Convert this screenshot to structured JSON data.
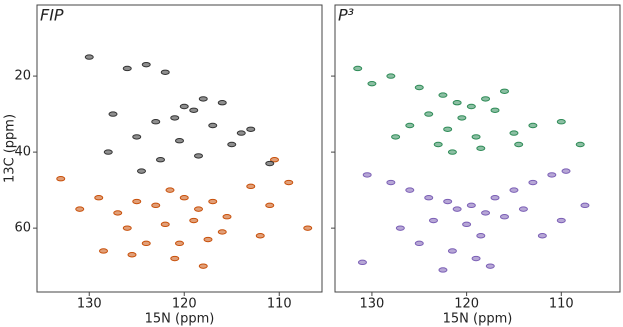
{
  "chart_data": [
    {
      "type": "scatter",
      "title": "FIP",
      "xlabel": "15N (ppm)",
      "ylabel": "13C (ppm)",
      "xlim": [
        135.5,
        105.5
      ],
      "ylim": [
        1.3,
        76.8
      ],
      "xticks": [
        130,
        120,
        110
      ],
      "yticks": [
        20,
        40,
        60
      ],
      "ytick_labels": true,
      "series": [
        {
          "color": "#c8500a",
          "x": [
            131,
            129,
            127,
            125,
            123,
            121.5,
            120,
            118.5,
            117,
            115.5,
            113,
            111,
            109,
            126,
            122,
            119,
            116,
            124,
            120.5,
            117.5,
            112,
            107,
            125.5,
            121,
            118,
            133,
            110.5,
            128.5
          ],
          "values": [
            55,
            52,
            56,
            53,
            54,
            50,
            52,
            55,
            53,
            57,
            49,
            54,
            48,
            60,
            59,
            58,
            61,
            64,
            64,
            63,
            62,
            60,
            67,
            68,
            70,
            47,
            42,
            66
          ]
        },
        {
          "color": "#333333",
          "x": [
            126,
            124,
            122,
            120,
            118,
            116,
            127.5,
            123,
            121,
            119,
            117,
            114,
            125,
            120.5,
            115,
            128,
            122.5,
            118.5,
            113,
            130,
            124.5,
            111
          ],
          "values": [
            18,
            17,
            19,
            28,
            26,
            27,
            30,
            32,
            31,
            29,
            33,
            35,
            36,
            37,
            38,
            40,
            42,
            41,
            34,
            15,
            45,
            43
          ]
        }
      ]
    },
    {
      "type": "scatter",
      "title": "P³",
      "xlabel": "15N (ppm)",
      "xlim": [
        133.9,
        103.8
      ],
      "ylim": [
        1.3,
        76.8
      ],
      "xticks": [
        130,
        120,
        110
      ],
      "yticks": [
        20,
        40,
        60
      ],
      "ytick_labels": false,
      "series": [
        {
          "color": "#2e8b57",
          "x": [
            131.5,
            128,
            125,
            122.5,
            121,
            119.5,
            118,
            116,
            124,
            120.5,
            117,
            126,
            122,
            119,
            115,
            113,
            127.5,
            123,
            121.5,
            118.5,
            114.5,
            130,
            110,
            108
          ],
          "values": [
            18,
            20,
            23,
            25,
            27,
            28,
            26,
            24,
            30,
            31,
            29,
            33,
            34,
            36,
            35,
            33,
            36,
            38,
            40,
            39,
            38,
            22,
            32,
            38
          ]
        },
        {
          "color": "#7b5fb5",
          "x": [
            130.5,
            128,
            126,
            124,
            122,
            121,
            119.5,
            118,
            117,
            115,
            113,
            111,
            109.5,
            127,
            123.5,
            120,
            118.5,
            116,
            114,
            125,
            121.5,
            119,
            112,
            107.5,
            110,
            131,
            122.5,
            117.5
          ],
          "values": [
            46,
            48,
            50,
            52,
            53,
            55,
            54,
            56,
            52,
            50,
            48,
            46,
            45,
            60,
            58,
            59,
            62,
            57,
            55,
            64,
            66,
            68,
            62,
            54,
            58,
            69,
            71,
            70
          ]
        }
      ]
    }
  ]
}
